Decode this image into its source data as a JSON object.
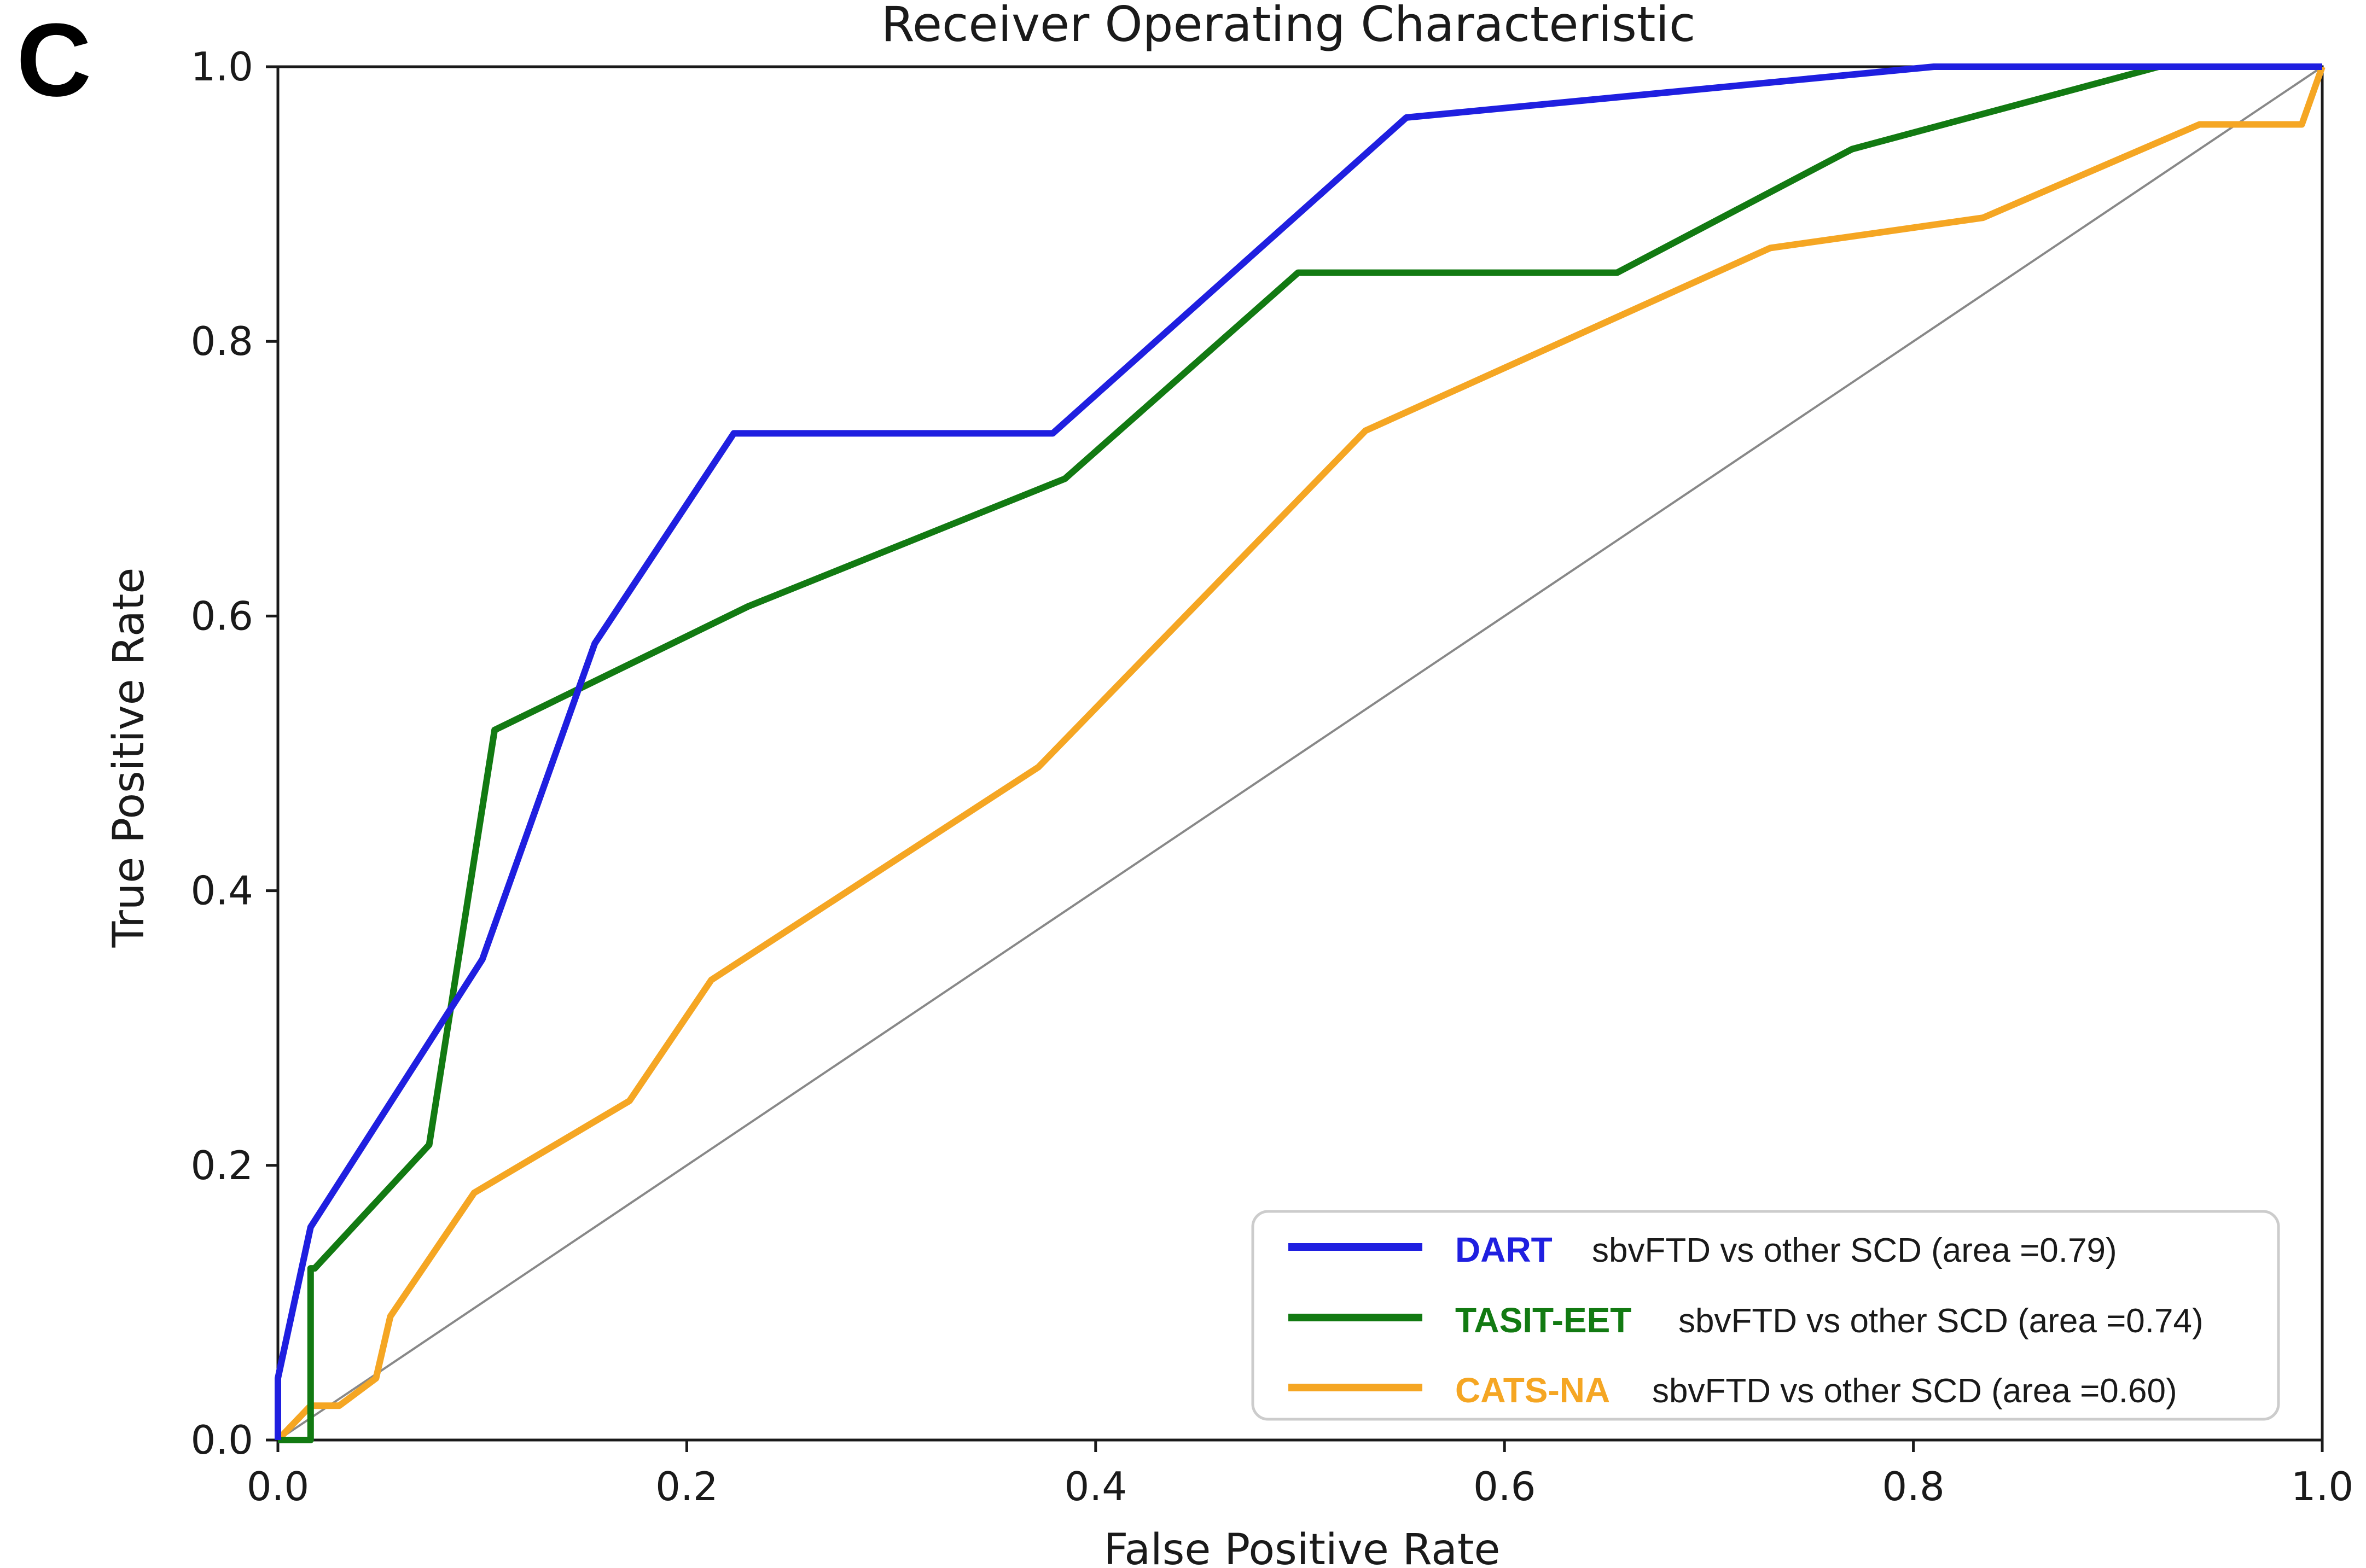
{
  "panel_letter": "C",
  "chart_data": {
    "type": "line",
    "title": "Receiver Operating Characteristic",
    "xlabel": "False Positive Rate",
    "ylabel": "True Positive Rate",
    "xlim": [
      0.0,
      1.0
    ],
    "ylim": [
      0.0,
      1.0
    ],
    "xticks": [
      "0.0",
      "0.2",
      "0.4",
      "0.6",
      "0.8",
      "1.0"
    ],
    "yticks": [
      "0.0",
      "0.2",
      "0.4",
      "0.6",
      "0.8",
      "1.0"
    ],
    "grid": false,
    "legend_position": "lower-right",
    "series": [
      {
        "name": "DART",
        "description": "sbvFTD vs other SCD (area =0.79)",
        "color": "#1f1fe0",
        "x": [
          0.0,
          0.0,
          0.016,
          0.1,
          0.155,
          0.223,
          0.379,
          0.552,
          0.81,
          0.92,
          1.0
        ],
        "y": [
          0.0,
          0.045,
          0.155,
          0.35,
          0.58,
          0.733,
          0.733,
          0.963,
          1.0,
          1.0,
          1.0
        ]
      },
      {
        "name": "TASIT-EET",
        "description": "sbvFTD vs other SCD (area =0.74)",
        "color": "#127a12",
        "x": [
          0.0,
          0.016,
          0.016,
          0.018,
          0.074,
          0.106,
          0.23,
          0.385,
          0.499,
          0.655,
          0.77,
          0.92,
          1.0
        ],
        "y": [
          0.0,
          0.0,
          0.125,
          0.125,
          0.215,
          0.517,
          0.607,
          0.7,
          0.85,
          0.85,
          0.94,
          1.0,
          1.0
        ]
      },
      {
        "name": "CATS-NA",
        "description": "sbvFTD vs other SCD (area =0.60)",
        "color": "#f5a623",
        "x": [
          0.0,
          0.016,
          0.03,
          0.048,
          0.055,
          0.096,
          0.172,
          0.212,
          0.372,
          0.532,
          0.73,
          0.834,
          0.94,
          0.99,
          1.0
        ],
        "y": [
          0.0,
          0.025,
          0.025,
          0.045,
          0.09,
          0.18,
          0.247,
          0.335,
          0.49,
          0.735,
          0.868,
          0.89,
          0.958,
          0.958,
          1.0
        ]
      }
    ],
    "reference_line": {
      "x": [
        0.0,
        1.0
      ],
      "y": [
        0.0,
        1.0
      ],
      "color": "#888888"
    }
  }
}
